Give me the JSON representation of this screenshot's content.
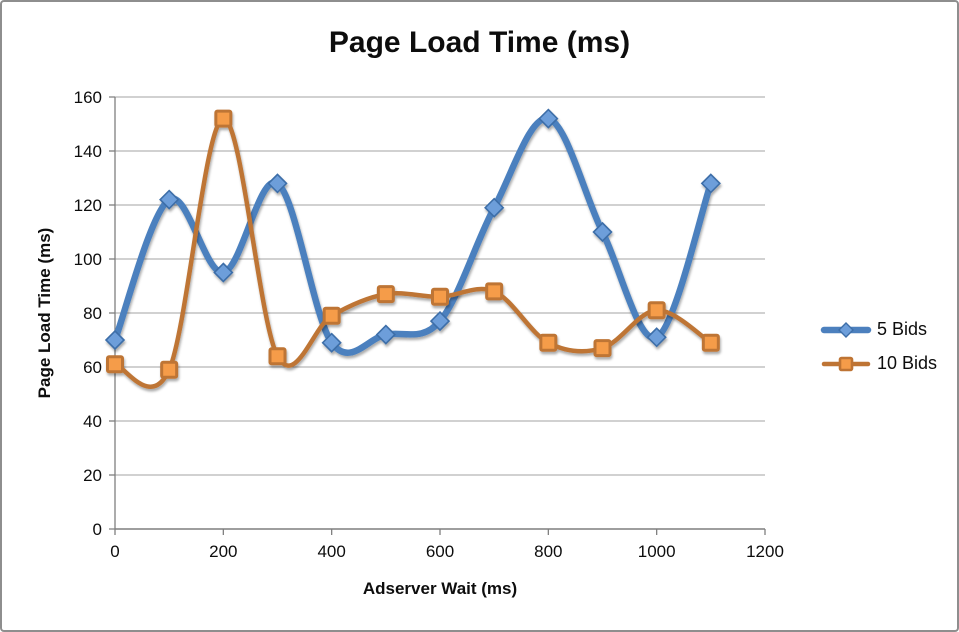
{
  "window": {
    "background": "#ffffff",
    "border_color": "#8e8e8e"
  },
  "chart_data": {
    "type": "line",
    "title": "Page Load Time (ms)",
    "xlabel": "Adserver Wait (ms)",
    "ylabel": "Page Load Time (ms)",
    "x": [
      0,
      100,
      200,
      300,
      400,
      500,
      600,
      700,
      800,
      900,
      1000,
      1100
    ],
    "series": [
      {
        "name": "5 Bids",
        "values": [
          70,
          122,
          95,
          128,
          69,
          72,
          77,
          119,
          152,
          110,
          71,
          128
        ],
        "color": "#4c80be",
        "marker": "diamond",
        "marker_fill": "#6d9eda",
        "marker_stroke": "#3d6ea8",
        "line_width": 6.5
      },
      {
        "name": "10 Bids",
        "values": [
          61,
          59,
          152,
          64,
          79,
          87,
          86,
          88,
          69,
          67,
          81,
          69
        ],
        "color": "#be7434",
        "marker": "square",
        "marker_fill": "#f59c49",
        "marker_stroke": "#be7434",
        "line_width": 4.5
      }
    ],
    "xlim": [
      0,
      1200
    ],
    "ylim": [
      0,
      160
    ],
    "x_ticks": [
      0,
      200,
      400,
      600,
      800,
      1000,
      1200
    ],
    "y_ticks": [
      0,
      20,
      40,
      60,
      80,
      100,
      120,
      140,
      160
    ],
    "grid": "horizontal",
    "gridline_color": "#a3a3a3",
    "axis_color": "#7f7f7f",
    "tick_label_color": "#0d0d0d",
    "legend_position": "right",
    "smoothed": true
  }
}
